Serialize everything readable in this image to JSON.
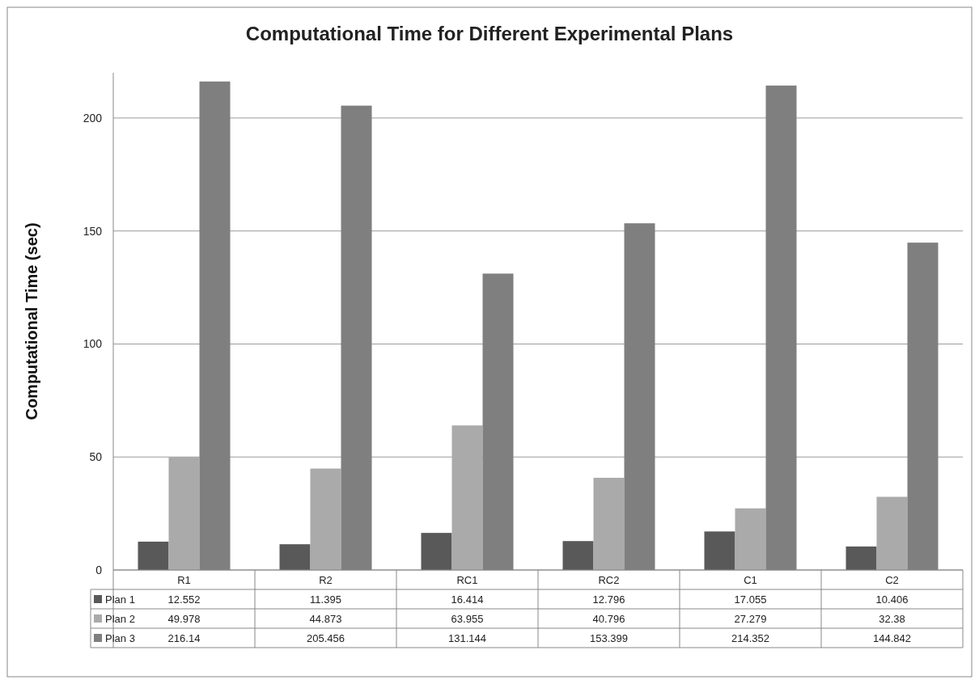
{
  "chart_data": {
    "type": "bar",
    "title": "Computational Time for Different Experimental Plans",
    "ylabel": "Computational  Time (sec)",
    "categories": [
      "R1",
      "R2",
      "RC1",
      "RC2",
      "C1",
      "C2"
    ],
    "series": [
      {
        "name": "Plan 1",
        "color": "#595959",
        "values": [
          12.552,
          11.395,
          16.414,
          12.796,
          17.055,
          10.406
        ]
      },
      {
        "name": "Plan 2",
        "color": "#aaaaaa",
        "values": [
          49.978,
          44.873,
          63.955,
          40.796,
          27.279,
          32.38
        ]
      },
      {
        "name": "Plan 3",
        "color": "#7f7f7f",
        "values": [
          216.14,
          205.456,
          131.144,
          153.399,
          214.352,
          144.842
        ]
      }
    ],
    "ylim": [
      0,
      220
    ],
    "yticks": [
      0,
      50,
      100,
      150,
      200
    ],
    "grid": "y",
    "data_labels": true,
    "legend": "bottom"
  }
}
